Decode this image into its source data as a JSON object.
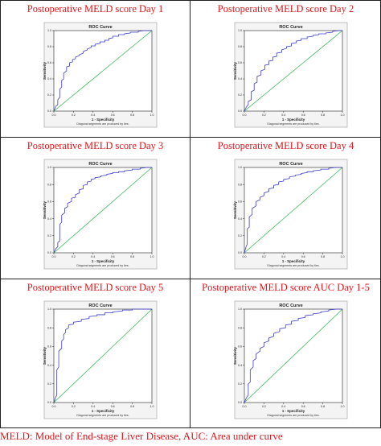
{
  "chart_data": [
    {
      "type": "line",
      "panel_title": "Postoperative MELD score Day 1",
      "title": "ROC Curve",
      "xlabel": "1 - Specificity",
      "ylabel": "Sensitivity",
      "note": "Diagonal segments are produced by ties.",
      "xlim": [
        0,
        1
      ],
      "ylim": [
        0,
        1
      ],
      "xticks": [
        "0.0",
        "0.2",
        "0.4",
        "0.6",
        "0.8",
        "1.0"
      ],
      "yticks": [
        "0.0",
        "0.2",
        "0.4",
        "0.6",
        "0.8",
        "1.0"
      ],
      "series": [
        {
          "x": [
            0,
            0.02,
            0.04,
            0.04,
            0.06,
            0.06,
            0.08,
            0.08,
            0.1,
            0.1,
            0.13,
            0.13,
            0.16,
            0.16,
            0.19,
            0.19,
            0.22,
            0.22,
            0.26,
            0.26,
            0.3,
            0.3,
            0.34,
            0.34,
            0.38,
            0.38,
            0.42,
            0.42,
            0.47,
            0.47,
            0.52,
            0.52,
            0.56,
            0.56,
            0.6,
            0.6,
            0.66,
            0.66,
            0.72,
            0.72,
            0.78,
            0.78,
            0.86,
            0.86,
            0.92,
            0.96,
            1
          ],
          "y": [
            0,
            0.06,
            0.08,
            0.14,
            0.17,
            0.27,
            0.3,
            0.38,
            0.4,
            0.47,
            0.5,
            0.55,
            0.56,
            0.6,
            0.61,
            0.64,
            0.65,
            0.67,
            0.69,
            0.7,
            0.72,
            0.74,
            0.76,
            0.77,
            0.79,
            0.81,
            0.81,
            0.83,
            0.84,
            0.86,
            0.86,
            0.88,
            0.88,
            0.9,
            0.91,
            0.93,
            0.93,
            0.95,
            0.95,
            0.96,
            0.97,
            0.98,
            0.98,
            0.99,
            1,
            1,
            1
          ]
        },
        {
          "x": [
            0,
            1
          ],
          "y": [
            0,
            1
          ]
        }
      ]
    },
    {
      "type": "line",
      "panel_title": "Postoperative MELD score Day 2",
      "title": "ROC Curve",
      "xlabel": "1 - Specificity",
      "ylabel": "Sensitivity",
      "note": "Diagonal segments are produced by ties.",
      "xlim": [
        0,
        1
      ],
      "ylim": [
        0,
        1
      ],
      "xticks": [
        "0.0",
        "0.2",
        "0.4",
        "0.6",
        "0.8",
        "1.0"
      ],
      "yticks": [
        "0.0",
        "0.2",
        "0.4",
        "0.6",
        "0.8",
        "1.0"
      ],
      "series": [
        {
          "x": [
            0,
            0.02,
            0.04,
            0.04,
            0.07,
            0.07,
            0.1,
            0.1,
            0.13,
            0.13,
            0.17,
            0.17,
            0.21,
            0.21,
            0.25,
            0.25,
            0.29,
            0.29,
            0.33,
            0.33,
            0.38,
            0.38,
            0.43,
            0.43,
            0.48,
            0.48,
            0.53,
            0.53,
            0.58,
            0.58,
            0.64,
            0.64,
            0.7,
            0.7,
            0.76,
            0.76,
            0.83,
            0.83,
            0.9,
            0.9,
            0.96,
            1
          ],
          "y": [
            0,
            0.05,
            0.08,
            0.12,
            0.14,
            0.24,
            0.26,
            0.34,
            0.36,
            0.43,
            0.45,
            0.5,
            0.52,
            0.57,
            0.58,
            0.62,
            0.63,
            0.67,
            0.68,
            0.72,
            0.73,
            0.76,
            0.78,
            0.8,
            0.81,
            0.84,
            0.85,
            0.87,
            0.88,
            0.9,
            0.9,
            0.92,
            0.93,
            0.94,
            0.95,
            0.96,
            0.96,
            0.97,
            0.98,
            0.99,
            1,
            1
          ]
        },
        {
          "x": [
            0,
            1
          ],
          "y": [
            0,
            1
          ]
        }
      ]
    },
    {
      "type": "line",
      "panel_title": "Postoperative MELD score Day 3",
      "title": "ROC Curve",
      "xlabel": "1 - Specificity",
      "ylabel": "Sensitivity",
      "note": "Diagonal segments are produced by ties.",
      "xlim": [
        0,
        1
      ],
      "ylim": [
        0,
        1
      ],
      "xticks": [
        "0.0",
        "0.2",
        "0.4",
        "0.6",
        "0.8",
        "1.0"
      ],
      "yticks": [
        "0.0",
        "0.2",
        "0.4",
        "0.6",
        "0.8",
        "1.0"
      ],
      "series": [
        {
          "x": [
            0,
            0.02,
            0.04,
            0.04,
            0.06,
            0.06,
            0.08,
            0.08,
            0.11,
            0.11,
            0.14,
            0.14,
            0.18,
            0.18,
            0.22,
            0.22,
            0.26,
            0.26,
            0.3,
            0.3,
            0.34,
            0.34,
            0.38,
            0.38,
            0.42,
            0.42,
            0.48,
            0.48,
            0.54,
            0.54,
            0.6,
            0.6,
            0.66,
            0.66,
            0.72,
            0.72,
            0.8,
            0.8,
            0.88,
            0.88,
            0.95,
            1
          ],
          "y": [
            0,
            0.05,
            0.07,
            0.12,
            0.14,
            0.33,
            0.36,
            0.44,
            0.47,
            0.52,
            0.54,
            0.58,
            0.6,
            0.64,
            0.65,
            0.68,
            0.7,
            0.74,
            0.75,
            0.79,
            0.8,
            0.83,
            0.84,
            0.86,
            0.87,
            0.88,
            0.89,
            0.9,
            0.91,
            0.92,
            0.93,
            0.94,
            0.94,
            0.95,
            0.95,
            0.96,
            0.97,
            0.98,
            0.98,
            0.99,
            1,
            1
          ]
        },
        {
          "x": [
            0,
            1
          ],
          "y": [
            0,
            1
          ]
        }
      ]
    },
    {
      "type": "line",
      "panel_title": "Postoperative MELD score Day 4",
      "title": "ROC Curve",
      "xlabel": "1 - Specificity",
      "ylabel": "Sensitivity",
      "note": "Diagonal segments are produced by ties.",
      "xlim": [
        0,
        1
      ],
      "ylim": [
        0,
        1
      ],
      "xticks": [
        "0.0",
        "0.2",
        "0.4",
        "0.6",
        "0.8",
        "1.0"
      ],
      "yticks": [
        "0.0",
        "0.2",
        "0.4",
        "0.6",
        "0.8",
        "1.0"
      ],
      "series": [
        {
          "x": [
            0,
            0.02,
            0.03,
            0.03,
            0.05,
            0.05,
            0.08,
            0.08,
            0.12,
            0.12,
            0.16,
            0.16,
            0.2,
            0.2,
            0.25,
            0.25,
            0.3,
            0.3,
            0.35,
            0.35,
            0.4,
            0.4,
            0.46,
            0.46,
            0.52,
            0.52,
            0.58,
            0.58,
            0.64,
            0.64,
            0.7,
            0.7,
            0.78,
            0.78,
            0.86,
            0.86,
            0.93,
            1
          ],
          "y": [
            0,
            0.08,
            0.1,
            0.28,
            0.3,
            0.42,
            0.45,
            0.52,
            0.55,
            0.6,
            0.62,
            0.65,
            0.67,
            0.7,
            0.72,
            0.75,
            0.76,
            0.79,
            0.8,
            0.83,
            0.84,
            0.86,
            0.87,
            0.89,
            0.9,
            0.91,
            0.92,
            0.93,
            0.94,
            0.95,
            0.95,
            0.96,
            0.97,
            0.98,
            0.98,
            0.99,
            1,
            1
          ]
        },
        {
          "x": [
            0,
            1
          ],
          "y": [
            0,
            1
          ]
        }
      ]
    },
    {
      "type": "line",
      "panel_title": "Postoperative MELD score Day 5",
      "title": "ROC Curve",
      "xlabel": "1 - Specificity",
      "ylabel": "Sensitivity",
      "note": "Diagonal segments are produced by ties.",
      "xlim": [
        0,
        1
      ],
      "ylim": [
        0,
        1
      ],
      "xticks": [
        "0.0",
        "0.2",
        "0.4",
        "0.6",
        "0.8",
        "1.0"
      ],
      "yticks": [
        "0.0",
        "0.2",
        "0.4",
        "0.6",
        "0.8",
        "1.0"
      ],
      "series": [
        {
          "x": [
            0,
            0.02,
            0.03,
            0.03,
            0.05,
            0.05,
            0.08,
            0.08,
            0.1,
            0.1,
            0.12,
            0.12,
            0.15,
            0.15,
            0.2,
            0.2,
            0.28,
            0.28,
            0.36,
            0.36,
            0.44,
            0.44,
            0.52,
            0.52,
            0.6,
            0.6,
            0.7,
            0.7,
            0.8,
            0.8,
            0.9,
            1
          ],
          "y": [
            0,
            0.06,
            0.08,
            0.35,
            0.38,
            0.55,
            0.58,
            0.66,
            0.68,
            0.73,
            0.75,
            0.78,
            0.8,
            0.83,
            0.84,
            0.86,
            0.87,
            0.89,
            0.9,
            0.92,
            0.93,
            0.94,
            0.94,
            0.96,
            0.96,
            0.97,
            0.98,
            0.99,
            0.99,
            1,
            1,
            1
          ]
        },
        {
          "x": [
            0,
            1
          ],
          "y": [
            0,
            1
          ]
        }
      ]
    },
    {
      "type": "line",
      "panel_title": "Postoperative MELD score AUC Day 1-5",
      "title": "ROC Curve",
      "xlabel": "1 - Specificity",
      "ylabel": "Sensitivity",
      "note": "Diagonal segments are produced by ties.",
      "xlim": [
        0,
        1
      ],
      "ylim": [
        0,
        1
      ],
      "xticks": [
        "0.0",
        "0.2",
        "0.4",
        "0.6",
        "0.8",
        "1.0"
      ],
      "yticks": [
        "0.0",
        "0.2",
        "0.4",
        "0.6",
        "0.8",
        "1.0"
      ],
      "series": [
        {
          "x": [
            0,
            0.02,
            0.04,
            0.04,
            0.06,
            0.06,
            0.09,
            0.09,
            0.12,
            0.12,
            0.16,
            0.16,
            0.2,
            0.2,
            0.25,
            0.25,
            0.3,
            0.3,
            0.36,
            0.36,
            0.42,
            0.42,
            0.48,
            0.48,
            0.55,
            0.55,
            0.62,
            0.62,
            0.7,
            0.7,
            0.78,
            0.78,
            0.86,
            0.86,
            0.94,
            1
          ],
          "y": [
            0,
            0.05,
            0.08,
            0.2,
            0.22,
            0.35,
            0.38,
            0.45,
            0.47,
            0.52,
            0.55,
            0.58,
            0.6,
            0.64,
            0.66,
            0.69,
            0.71,
            0.74,
            0.76,
            0.79,
            0.8,
            0.83,
            0.84,
            0.87,
            0.88,
            0.9,
            0.91,
            0.93,
            0.94,
            0.95,
            0.96,
            0.97,
            0.98,
            0.99,
            1,
            1
          ]
        },
        {
          "x": [
            0,
            1
          ],
          "y": [
            0,
            1
          ]
        }
      ]
    }
  ],
  "footnote": "MELD: Model of End-stage Liver Disease, AUC: Area under curve",
  "colors": {
    "title": "#e0161b",
    "roc_line": "#3b3bd1",
    "reference_line": "#2db34a",
    "plot_bg": "#ffffff",
    "frame": "#222222"
  }
}
